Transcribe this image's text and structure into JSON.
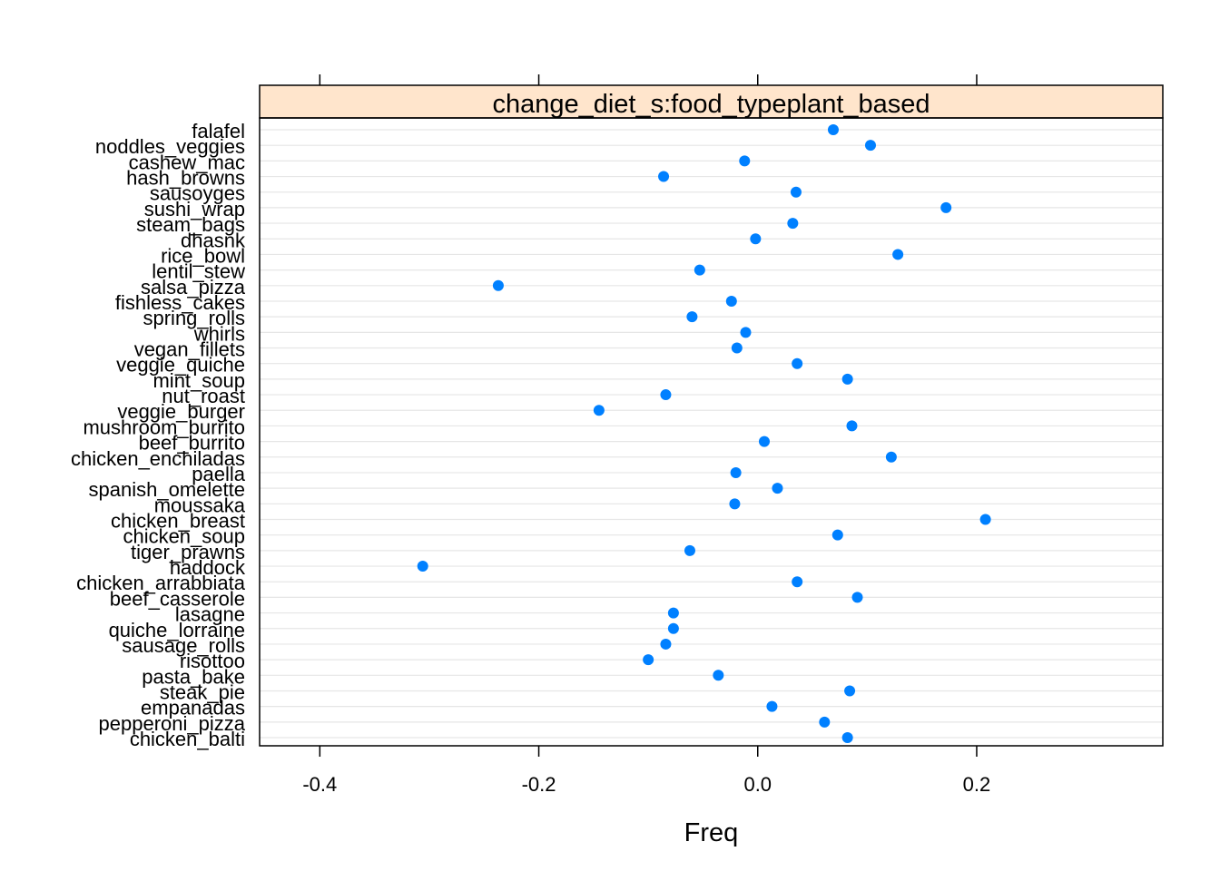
{
  "chart_data": {
    "type": "dotplot",
    "strip_title": "change_diet_s:food_typeplant_based",
    "xlabel": "Freq",
    "xlim": [
      -0.455,
      0.37
    ],
    "xticks": [
      -0.4,
      -0.2,
      0.0,
      0.2
    ],
    "xtick_labels": [
      "-0.4",
      "-0.2",
      "0.0",
      "0.2"
    ],
    "grid": true,
    "colors": {
      "point": "#0080ff",
      "strip": "#ffe5cc",
      "grid": "#e6e6e6"
    },
    "categories": [
      "falafel",
      "noddles_veggies",
      "cashew_mac",
      "hash_browns",
      "sausoyges",
      "sushi_wrap",
      "steam_bags",
      "dhasnk",
      "rice_bowl",
      "lentil_stew",
      "salsa_pizza",
      "fishless_cakes",
      "spring_rolls",
      "whirls",
      "vegan_fillets",
      "veggie_quiche",
      "mint_soup",
      "nut_roast",
      "veggie_burger",
      "mushroom_burrito",
      "beef_burrito",
      "chicken_enchiladas",
      "paella",
      "spanish_omelette",
      "moussaka",
      "chicken_breast",
      "chicken_soup",
      "tiger_prawns",
      "haddock",
      "chicken_arrabbiata",
      "beef_casserole",
      "lasagne",
      "quiche_lorraine",
      "sausage_rolls",
      "risottoo",
      "pasta_bake",
      "steak_pie",
      "empanadas",
      "pepperoni_pizza",
      "chicken_balti"
    ],
    "values": [
      0.069,
      0.103,
      -0.012,
      -0.086,
      0.035,
      0.172,
      0.032,
      -0.002,
      0.128,
      -0.053,
      -0.237,
      -0.024,
      -0.06,
      -0.011,
      -0.019,
      0.036,
      0.082,
      -0.084,
      -0.145,
      0.086,
      0.006,
      0.122,
      -0.02,
      0.018,
      -0.021,
      0.208,
      0.073,
      -0.062,
      -0.306,
      0.036,
      0.091,
      -0.077,
      -0.077,
      -0.084,
      -0.1,
      -0.036,
      0.084,
      0.013,
      0.061,
      0.082
    ]
  }
}
